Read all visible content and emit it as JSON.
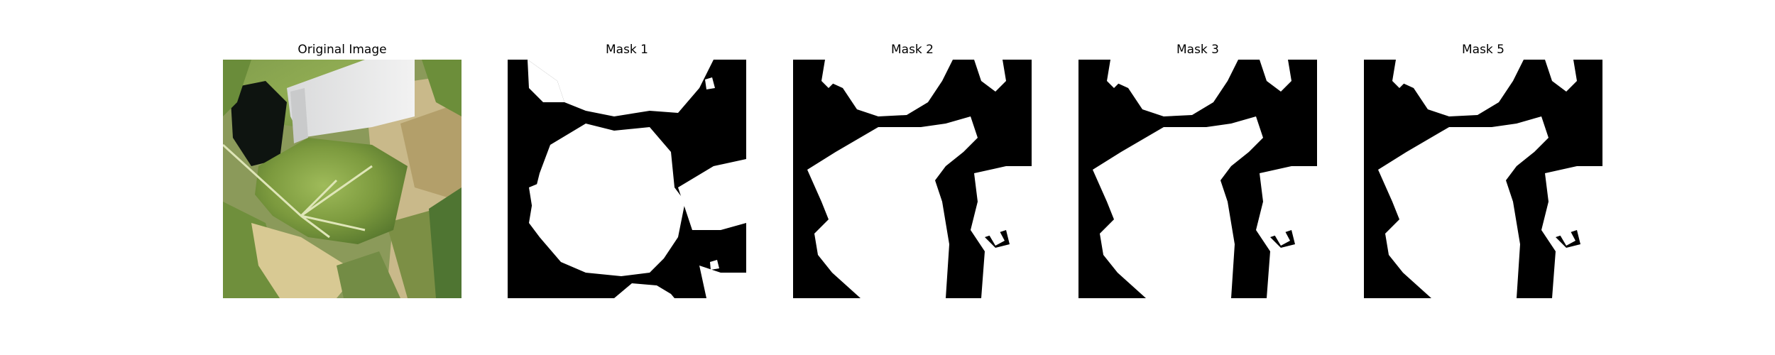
{
  "figure": {
    "panels": [
      {
        "title": "Original Image",
        "kind": "photo",
        "subject": "leafy-plant-close-up"
      },
      {
        "title": "Mask 1",
        "kind": "mask"
      },
      {
        "title": "Mask 2",
        "kind": "mask"
      },
      {
        "title": "Mask 3",
        "kind": "mask"
      },
      {
        "title": "Mask 5",
        "kind": "mask"
      }
    ],
    "colors": {
      "mask_fg": "#ffffff",
      "mask_bg": "#000000"
    }
  }
}
